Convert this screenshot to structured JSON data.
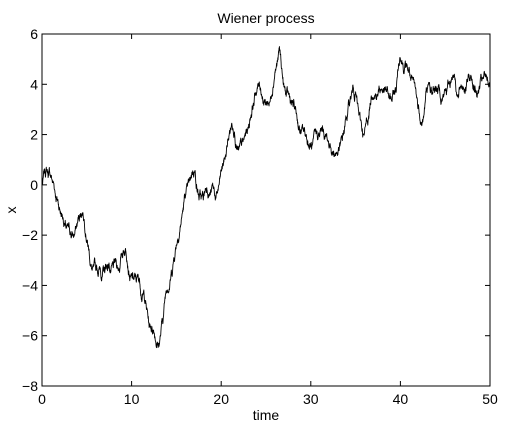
{
  "chart_data": {
    "type": "line",
    "title": "Wiener process",
    "xlabel": "time",
    "ylabel": "x",
    "xlim": [
      0,
      50
    ],
    "ylim": [
      -8,
      6
    ],
    "xticks": [
      0,
      10,
      20,
      30,
      40,
      50
    ],
    "yticks": [
      -8,
      -6,
      -4,
      -2,
      0,
      2,
      4,
      6
    ],
    "xtick_labels": [
      "0",
      "10",
      "20",
      "30",
      "40",
      "50"
    ],
    "ytick_labels": [
      "−8",
      "−6",
      "−4",
      "−2",
      "0",
      "2",
      "4",
      "6"
    ],
    "grid": false,
    "line_color": "#000000",
    "series": [
      {
        "x": [
          0,
          0.5,
          1,
          1.5,
          2,
          2.5,
          3,
          3.5,
          4,
          4.5,
          5,
          5.5,
          6,
          6.5,
          7,
          7.5,
          8,
          8.5,
          9,
          9.5,
          10,
          10.5,
          11,
          11.5,
          12,
          12.5,
          13,
          13.5,
          14,
          14.5,
          15,
          15.5,
          16,
          16.5,
          17,
          17.5,
          18,
          18.5,
          19,
          19.5,
          20,
          20.5,
          21,
          21.5,
          22,
          22.5,
          23,
          23.5,
          24,
          24.5,
          25,
          25.5,
          26,
          26.5,
          27,
          27.5,
          28,
          28.5,
          29,
          29.5,
          30,
          30.5,
          31,
          31.5,
          32,
          32.5,
          33,
          33.5,
          34,
          34.5,
          35,
          35.5,
          36,
          36.5,
          37,
          37.5,
          38,
          38.5,
          39,
          39.5,
          40,
          40.5,
          41,
          41.5,
          42,
          42.5,
          43,
          43.5,
          44,
          44.5,
          45,
          45.5,
          46,
          46.5,
          47,
          47.5,
          48,
          48.5,
          49,
          49.5,
          50
        ],
        "values": [
          0,
          0.6,
          0.3,
          -0.5,
          -1.0,
          -1.6,
          -1.5,
          -2.0,
          -1.4,
          -1.2,
          -2.3,
          -3.2,
          -3.4,
          -3.3,
          -3.5,
          -3.2,
          -3.1,
          -3.4,
          -2.9,
          -3.1,
          -3.6,
          -3.8,
          -4.3,
          -4.6,
          -5.6,
          -5.9,
          -6.4,
          -5.5,
          -4.2,
          -3.6,
          -2.4,
          -1.6,
          -0.5,
          0.3,
          0.5,
          -0.5,
          -0.6,
          -0.4,
          0.0,
          -0.3,
          0.6,
          1.2,
          2.1,
          2.0,
          1.5,
          1.8,
          2.3,
          3.1,
          3.8,
          3.6,
          3.2,
          3.5,
          4.5,
          5.5,
          3.9,
          3.6,
          3.2,
          2.6,
          2.3,
          2.0,
          1.6,
          2.2,
          2.0,
          1.8,
          1.6,
          1.2,
          1.3,
          1.8,
          2.6,
          3.5,
          3.7,
          2.7,
          2.1,
          2.8,
          3.4,
          3.6,
          3.7,
          3.9,
          3.4,
          3.7,
          5.0,
          4.8,
          4.6,
          4.2,
          3.1,
          2.5,
          3.8,
          3.6,
          3.9,
          3.3,
          3.8,
          4.0,
          4.3,
          3.5,
          3.9,
          4.1,
          4.2,
          3.6,
          4.4,
          4.3,
          4.1
        ]
      }
    ]
  }
}
